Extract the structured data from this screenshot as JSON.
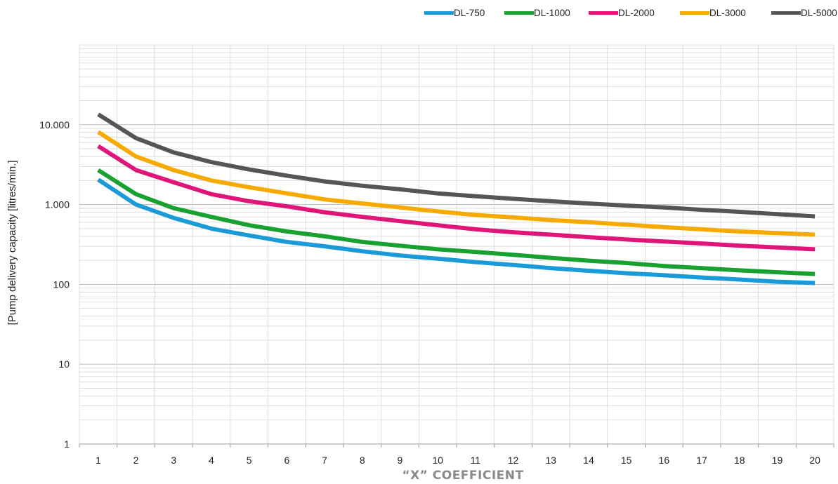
{
  "chart_data": {
    "type": "line",
    "xlabel": "“X” COEFFICIENT",
    "ylabel": "[Pump delivery capacity [litres/min.]",
    "y_scale": "log",
    "ylim": [
      1,
      100000
    ],
    "xlim": [
      0.5,
      20.5
    ],
    "grid": true,
    "legend_position": "top-right",
    "x": [
      1,
      2,
      3,
      4,
      5,
      6,
      7,
      8,
      9,
      10,
      11,
      12,
      13,
      14,
      15,
      16,
      17,
      18,
      19,
      20
    ],
    "x_tick_labels": [
      "1",
      "2",
      "3",
      "4",
      "5",
      "6",
      "7",
      "8",
      "9",
      "10",
      "11",
      "12",
      "13",
      "14",
      "15",
      "16",
      "17",
      "18",
      "19",
      "20"
    ],
    "y_ticks": [
      1,
      10,
      100,
      1000,
      10000
    ],
    "y_tick_labels": [
      "1",
      "10",
      "100",
      "1.000",
      "10.000"
    ],
    "series": [
      {
        "name": "DL-750",
        "color": "#1a9ad7",
        "values": [
          2050,
          1000,
          680,
          500,
          410,
          340,
          300,
          260,
          230,
          210,
          190,
          175,
          160,
          148,
          138,
          130,
          122,
          115,
          108,
          104
        ]
      },
      {
        "name": "DL-1000",
        "color": "#18a030",
        "values": [
          2700,
          1350,
          900,
          700,
          550,
          460,
          400,
          340,
          305,
          275,
          255,
          235,
          215,
          198,
          185,
          170,
          160,
          150,
          142,
          135
        ]
      },
      {
        "name": "DL-2000",
        "color": "#e0157a",
        "values": [
          5400,
          2700,
          1900,
          1350,
          1100,
          950,
          800,
          700,
          620,
          550,
          490,
          450,
          420,
          390,
          365,
          345,
          325,
          305,
          290,
          275
        ]
      },
      {
        "name": "DL-3000",
        "color": "#f6aa00",
        "values": [
          8100,
          4000,
          2700,
          2000,
          1650,
          1380,
          1160,
          1030,
          920,
          820,
          740,
          690,
          640,
          600,
          560,
          520,
          490,
          460,
          440,
          420
        ]
      },
      {
        "name": "DL-5000",
        "color": "#555555",
        "values": [
          13500,
          6800,
          4500,
          3400,
          2750,
          2300,
          1950,
          1720,
          1550,
          1380,
          1270,
          1180,
          1100,
          1030,
          970,
          920,
          860,
          810,
          760,
          710
        ]
      }
    ]
  }
}
